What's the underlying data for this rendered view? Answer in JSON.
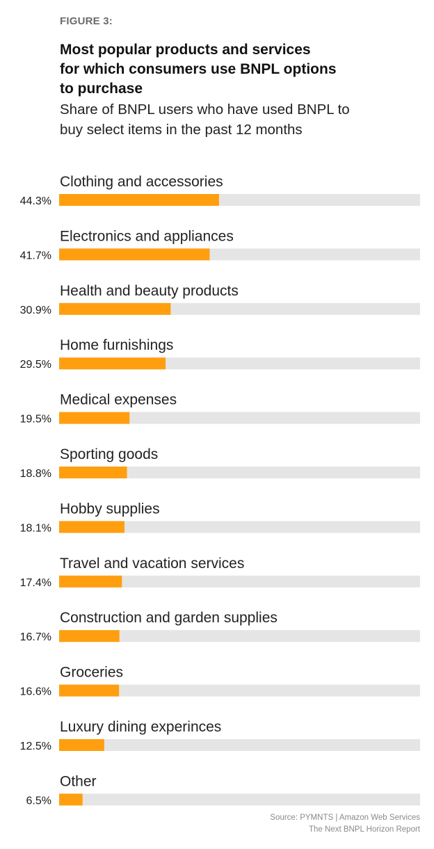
{
  "figure_label": "FIGURE 3:",
  "title_lines": [
    "Most popular products and services",
    "for which consumers use BNPL options",
    "to purchase"
  ],
  "subtitle_lines": [
    "Share of BNPL users who have used BNPL to",
    "buy select items in the past 12 months"
  ],
  "source_lines": [
    "Source: PYMNTS  |  Amazon Web Services",
    "The Next BNPL Horizon Report"
  ],
  "colors": {
    "bar": "#FF9F0F",
    "track": "#E5E5E6",
    "label": "#222222",
    "value": "#1a1a1a"
  },
  "chart_data": {
    "type": "bar",
    "orientation": "horizontal",
    "title": "Most popular products and services for which consumers use BNPL options to purchase",
    "subtitle": "Share of BNPL users who have used BNPL to buy select items in the past 12 months",
    "xlim": [
      0,
      100
    ],
    "grid": false,
    "categories": [
      "Clothing and accessories",
      "Electronics and appliances",
      "Health and beauty products",
      "Home furnishings",
      "Medical expenses",
      "Sporting goods",
      "Hobby supplies",
      "Travel and vacation services",
      "Construction and garden supplies",
      "Groceries",
      "Luxury dining experinces",
      "Other"
    ],
    "values": [
      44.3,
      41.7,
      30.9,
      29.5,
      19.5,
      18.8,
      18.1,
      17.4,
      16.7,
      16.6,
      12.5,
      6.5
    ],
    "value_labels": [
      "44.3%",
      "41.7%",
      "30.9%",
      "29.5%",
      "19.5%",
      "18.8%",
      "18.1%",
      "17.4%",
      "16.7%",
      "16.6%",
      "12.5%",
      "6.5%"
    ]
  }
}
